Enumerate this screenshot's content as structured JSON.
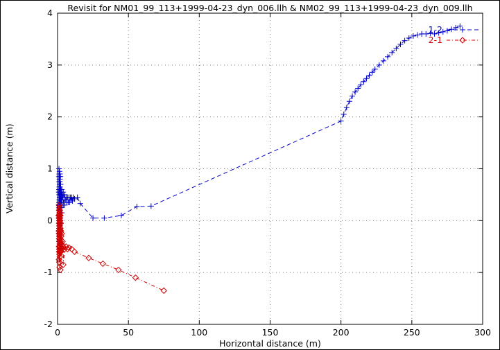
{
  "chart_data": {
    "type": "line",
    "title": "Revisit for NM01_99_113+1999-04-23_dyn_006.llh & NM02_99_113+1999-04-23_dyn_009.llh",
    "xlabel": "Horizontal distance (m)",
    "ylabel": "Vertical distance (m)",
    "xlim": [
      0,
      300
    ],
    "ylim": [
      -2,
      4
    ],
    "xticks": [
      0,
      50,
      100,
      150,
      200,
      250,
      300
    ],
    "yticks": [
      -2,
      -1,
      0,
      1,
      2,
      3,
      4
    ],
    "grid": true,
    "legend_position": "top-right",
    "series": [
      {
        "name": "1-2",
        "color": "#0000c8",
        "marker": "plus",
        "dash": "6,4",
        "points": [
          [
            0.8,
            0.55
          ],
          [
            0.9,
            0.3
          ],
          [
            1.0,
            1.0
          ],
          [
            1.0,
            0.85
          ],
          [
            1.0,
            0.6
          ],
          [
            1.0,
            0.35
          ],
          [
            1.0,
            0.1
          ],
          [
            1.0,
            -0.15
          ],
          [
            1.0,
            -0.4
          ],
          [
            1.1,
            0.75
          ],
          [
            1.1,
            0.5
          ],
          [
            1.1,
            0.2
          ],
          [
            1.2,
            0.9
          ],
          [
            1.2,
            0.65
          ],
          [
            1.2,
            0.4
          ],
          [
            1.2,
            0.05
          ],
          [
            1.2,
            -0.3
          ],
          [
            1.3,
            0.8
          ],
          [
            1.3,
            0.55
          ],
          [
            1.3,
            0.25
          ],
          [
            1.3,
            -0.1
          ],
          [
            1.4,
            0.95
          ],
          [
            1.4,
            0.7
          ],
          [
            1.4,
            0.45
          ],
          [
            1.4,
            0.15
          ],
          [
            1.4,
            -0.25
          ],
          [
            1.5,
            0.85
          ],
          [
            1.5,
            0.6
          ],
          [
            1.5,
            0.3
          ],
          [
            1.5,
            0.0
          ],
          [
            1.5,
            -0.45
          ],
          [
            1.6,
            0.75
          ],
          [
            1.6,
            0.5
          ],
          [
            1.6,
            0.2
          ],
          [
            1.7,
            0.9
          ],
          [
            1.7,
            0.65
          ],
          [
            1.7,
            0.35
          ],
          [
            1.7,
            -0.05
          ],
          [
            1.8,
            0.8
          ],
          [
            1.8,
            0.55
          ],
          [
            1.8,
            0.25
          ],
          [
            1.9,
            0.7
          ],
          [
            1.9,
            0.45
          ],
          [
            2.0,
            0.85
          ],
          [
            2.0,
            0.6
          ],
          [
            2.0,
            0.3
          ],
          [
            2.0,
            0.05
          ],
          [
            2.0,
            -0.2
          ],
          [
            2.2,
            0.7
          ],
          [
            2.2,
            0.45
          ],
          [
            2.2,
            0.15
          ],
          [
            2.4,
            0.6
          ],
          [
            2.4,
            0.35
          ],
          [
            2.6,
            0.55
          ],
          [
            2.6,
            0.25
          ],
          [
            2.8,
            0.5
          ],
          [
            3.0,
            0.6
          ],
          [
            3.0,
            0.4
          ],
          [
            3.0,
            0.15
          ],
          [
            3.3,
            0.5
          ],
          [
            3.6,
            0.45
          ],
          [
            4.0,
            0.55
          ],
          [
            4.0,
            0.3
          ],
          [
            4.5,
            0.45
          ],
          [
            5.0,
            0.5
          ],
          [
            5.0,
            0.3
          ],
          [
            5.5,
            0.4
          ],
          [
            6.0,
            0.45
          ],
          [
            6.5,
            0.35
          ],
          [
            7.0,
            0.45
          ],
          [
            7.5,
            0.35
          ],
          [
            8.0,
            0.45
          ],
          [
            8.5,
            0.35
          ],
          [
            9.0,
            0.45
          ],
          [
            9.5,
            0.4
          ],
          [
            10.0,
            0.45
          ],
          [
            10.5,
            0.38
          ],
          [
            11.0,
            0.45
          ],
          [
            12.0,
            0.42
          ],
          [
            14,
            0.45
          ],
          [
            16,
            0.33
          ],
          [
            25,
            0.05
          ],
          [
            33,
            0.05
          ],
          [
            45,
            0.1
          ],
          [
            56,
            0.27
          ],
          [
            66,
            0.28
          ],
          [
            200,
            1.92
          ],
          [
            202,
            2.05
          ],
          [
            204,
            2.18
          ],
          [
            206,
            2.3
          ],
          [
            208,
            2.4
          ],
          [
            210,
            2.48
          ],
          [
            212,
            2.55
          ],
          [
            214,
            2.62
          ],
          [
            216,
            2.68
          ],
          [
            218,
            2.74
          ],
          [
            220,
            2.8
          ],
          [
            222,
            2.86
          ],
          [
            224,
            2.92
          ],
          [
            227,
            3.0
          ],
          [
            230,
            3.08
          ],
          [
            233,
            3.16
          ],
          [
            236,
            3.24
          ],
          [
            239,
            3.32
          ],
          [
            242,
            3.4
          ],
          [
            245,
            3.47
          ],
          [
            248,
            3.52
          ],
          [
            251,
            3.56
          ],
          [
            254,
            3.58
          ],
          [
            257,
            3.6
          ],
          [
            260,
            3.6
          ],
          [
            263,
            3.61
          ],
          [
            266,
            3.6
          ],
          [
            269,
            3.62
          ],
          [
            272,
            3.64
          ],
          [
            275,
            3.66
          ],
          [
            278,
            3.69
          ],
          [
            281,
            3.72
          ],
          [
            284,
            3.75
          ]
        ]
      },
      {
        "name": "2-1",
        "color": "#d00000",
        "marker": "diamond",
        "dash": "5,3,1,3",
        "points": [
          [
            0.8,
            0.1
          ],
          [
            0.9,
            -0.2
          ],
          [
            1.0,
            0.3
          ],
          [
            1.0,
            0.05
          ],
          [
            1.0,
            -0.25
          ],
          [
            1.0,
            -0.5
          ],
          [
            1.0,
            -0.75
          ],
          [
            1.1,
            0.2
          ],
          [
            1.1,
            -0.05
          ],
          [
            1.1,
            -0.35
          ],
          [
            1.1,
            -0.6
          ],
          [
            1.2,
            0.25
          ],
          [
            1.2,
            0.0
          ],
          [
            1.2,
            -0.3
          ],
          [
            1.2,
            -0.55
          ],
          [
            1.2,
            -0.8
          ],
          [
            1.3,
            0.15
          ],
          [
            1.3,
            -0.1
          ],
          [
            1.3,
            -0.4
          ],
          [
            1.3,
            -0.65
          ],
          [
            1.4,
            0.2
          ],
          [
            1.4,
            -0.05
          ],
          [
            1.4,
            -0.3
          ],
          [
            1.4,
            -0.6
          ],
          [
            1.4,
            -0.9
          ],
          [
            1.5,
            0.1
          ],
          [
            1.5,
            -0.15
          ],
          [
            1.5,
            -0.45
          ],
          [
            1.5,
            -0.7
          ],
          [
            1.6,
            0.2
          ],
          [
            1.6,
            -0.1
          ],
          [
            1.6,
            -0.5
          ],
          [
            1.7,
            0.05
          ],
          [
            1.7,
            -0.25
          ],
          [
            1.7,
            -0.6
          ],
          [
            1.8,
            0.15
          ],
          [
            1.8,
            -0.2
          ],
          [
            1.8,
            -0.55
          ],
          [
            1.9,
            0.0
          ],
          [
            1.9,
            -0.35
          ],
          [
            2.0,
            0.1
          ],
          [
            2.0,
            -0.15
          ],
          [
            2.0,
            -0.5
          ],
          [
            2.0,
            -0.95
          ],
          [
            2.2,
            -0.05
          ],
          [
            2.2,
            -0.4
          ],
          [
            2.4,
            -0.2
          ],
          [
            2.4,
            -0.6
          ],
          [
            2.6,
            -0.3
          ],
          [
            2.8,
            -0.45
          ],
          [
            3.0,
            -0.25
          ],
          [
            3.0,
            -0.55
          ],
          [
            3.5,
            -0.4
          ],
          [
            4.0,
            -0.5
          ],
          [
            4.0,
            -0.85
          ],
          [
            5.0,
            -0.55
          ],
          [
            6.0,
            -0.5
          ],
          [
            7.0,
            -0.55
          ],
          [
            8.0,
            -0.52
          ],
          [
            10,
            -0.55
          ],
          [
            12,
            -0.6
          ],
          [
            22,
            -0.72
          ],
          [
            32,
            -0.83
          ],
          [
            43,
            -0.95
          ],
          [
            55,
            -1.1
          ],
          [
            75,
            -1.35
          ]
        ]
      }
    ]
  }
}
